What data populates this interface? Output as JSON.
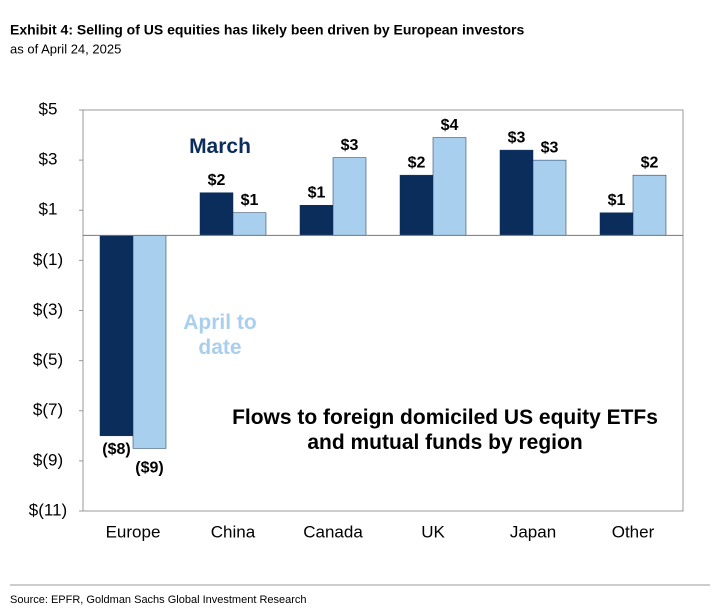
{
  "chart_data": {
    "type": "bar",
    "title": "Exhibit 4: Selling of US equities has likely been driven by European investors",
    "subtitle": "as of April 24, 2025",
    "source": "Source: EPFR, Goldman Sachs Global Investment Research",
    "annotation": "Flows to foreign domiciled US equity ETFs and mutual funds by region",
    "categories": [
      "Europe",
      "China",
      "Canada",
      "UK",
      "Japan",
      "Other"
    ],
    "series": [
      {
        "name": "March",
        "color": "#0b2d5b",
        "values": [
          -8,
          1.7,
          1.2,
          2.4,
          3.4,
          0.9
        ],
        "value_labels": [
          "($8)",
          "$2",
          "$1",
          "$2",
          "$3",
          "$1"
        ]
      },
      {
        "name": "April to date",
        "color": "#a9cfee",
        "values": [
          -8.5,
          0.9,
          3.1,
          3.9,
          3.0,
          2.4
        ],
        "value_labels": [
          "($9)",
          "$1",
          "$3",
          "$4",
          "$3",
          "$2"
        ]
      }
    ],
    "ylim": [
      -11,
      5
    ],
    "yticks": [
      {
        "value": 5,
        "label": "$5"
      },
      {
        "value": 3,
        "label": "$3"
      },
      {
        "value": 1,
        "label": "$1"
      },
      {
        "value": -1,
        "label": "$(1)"
      },
      {
        "value": -3,
        "label": "$(3)"
      },
      {
        "value": -5,
        "label": "$(5)"
      },
      {
        "value": -7,
        "label": "$(7)"
      },
      {
        "value": -9,
        "label": "$(9)"
      },
      {
        "value": -11,
        "label": "$(11)"
      }
    ],
    "grid": false
  }
}
